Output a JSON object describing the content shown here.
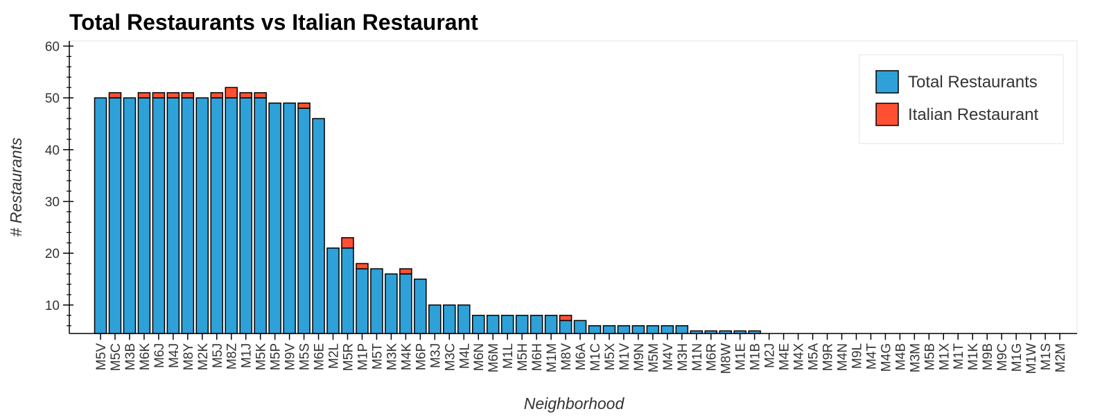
{
  "chart_data": {
    "type": "bar",
    "stacked": true,
    "title": "Total Restaurants vs Italian Restaurant",
    "xlabel": "Neighborhood",
    "ylabel": "# Restaurants",
    "ylim": [
      4.5,
      61
    ],
    "yticks": [
      10,
      20,
      30,
      40,
      50,
      60
    ],
    "grid": false,
    "legend_position": "top-right",
    "categories": [
      "M5V",
      "M5C",
      "M3B",
      "M6K",
      "M6J",
      "M4J",
      "M8Y",
      "M2K",
      "M5J",
      "M8Z",
      "M1J",
      "M5K",
      "M5P",
      "M9V",
      "M5S",
      "M6E",
      "M2L",
      "M5R",
      "M1P",
      "M5T",
      "M3K",
      "M4K",
      "M6P",
      "M3J",
      "M3C",
      "M4L",
      "M6N",
      "M6M",
      "M1L",
      "M5H",
      "M6H",
      "M1M",
      "M8V",
      "M6A",
      "M1C",
      "M5X",
      "M1V",
      "M9N",
      "M5M",
      "M4V",
      "M3H",
      "M1N",
      "M6R",
      "M8W",
      "M1E",
      "M1B",
      "M2J",
      "M4E",
      "M4X",
      "M5A",
      "M9R",
      "M4N",
      "M9L",
      "M4T",
      "M4G",
      "M4B",
      "M3M",
      "M5B",
      "M1X",
      "M1T",
      "M1K",
      "M9B",
      "M9C",
      "M1G",
      "M1W",
      "M1S",
      "M2M"
    ],
    "series": [
      {
        "name": "Total Restaurants",
        "color": "#2EA1D8",
        "values": [
          50,
          50,
          50,
          50,
          50,
          50,
          50,
          50,
          50,
          50,
          50,
          50,
          49,
          49,
          48,
          46,
          21,
          21,
          17,
          17,
          16,
          16,
          15,
          10,
          10,
          10,
          8,
          8,
          8,
          8,
          8,
          8,
          7,
          7,
          6,
          6,
          6,
          6,
          6,
          6,
          6,
          5,
          5,
          5,
          5,
          5,
          4.5,
          4.5,
          4.5,
          4.5,
          4.5,
          4.5,
          4.5,
          4.5,
          4.5,
          4.5,
          4.5,
          4.5,
          4.5,
          4.5,
          4.5,
          4.5,
          4.5,
          4.5,
          4.5,
          4.5,
          4.5
        ]
      },
      {
        "name": "Italian Restaurant",
        "color": "#FF5033",
        "values": [
          0,
          1,
          0,
          1,
          1,
          1,
          1,
          0,
          1,
          2,
          1,
          1,
          0,
          0,
          1,
          0,
          0,
          2,
          1,
          0,
          0,
          1,
          0,
          0,
          0,
          0,
          0,
          0,
          0,
          0,
          0,
          0,
          1,
          0,
          0,
          0,
          0,
          0,
          0,
          0,
          0,
          0,
          0,
          0,
          0,
          0,
          0,
          0,
          0,
          0,
          0,
          0,
          0,
          0,
          0,
          0,
          0,
          0,
          0,
          0,
          0,
          0,
          0,
          0,
          0,
          0,
          0
        ]
      }
    ]
  }
}
